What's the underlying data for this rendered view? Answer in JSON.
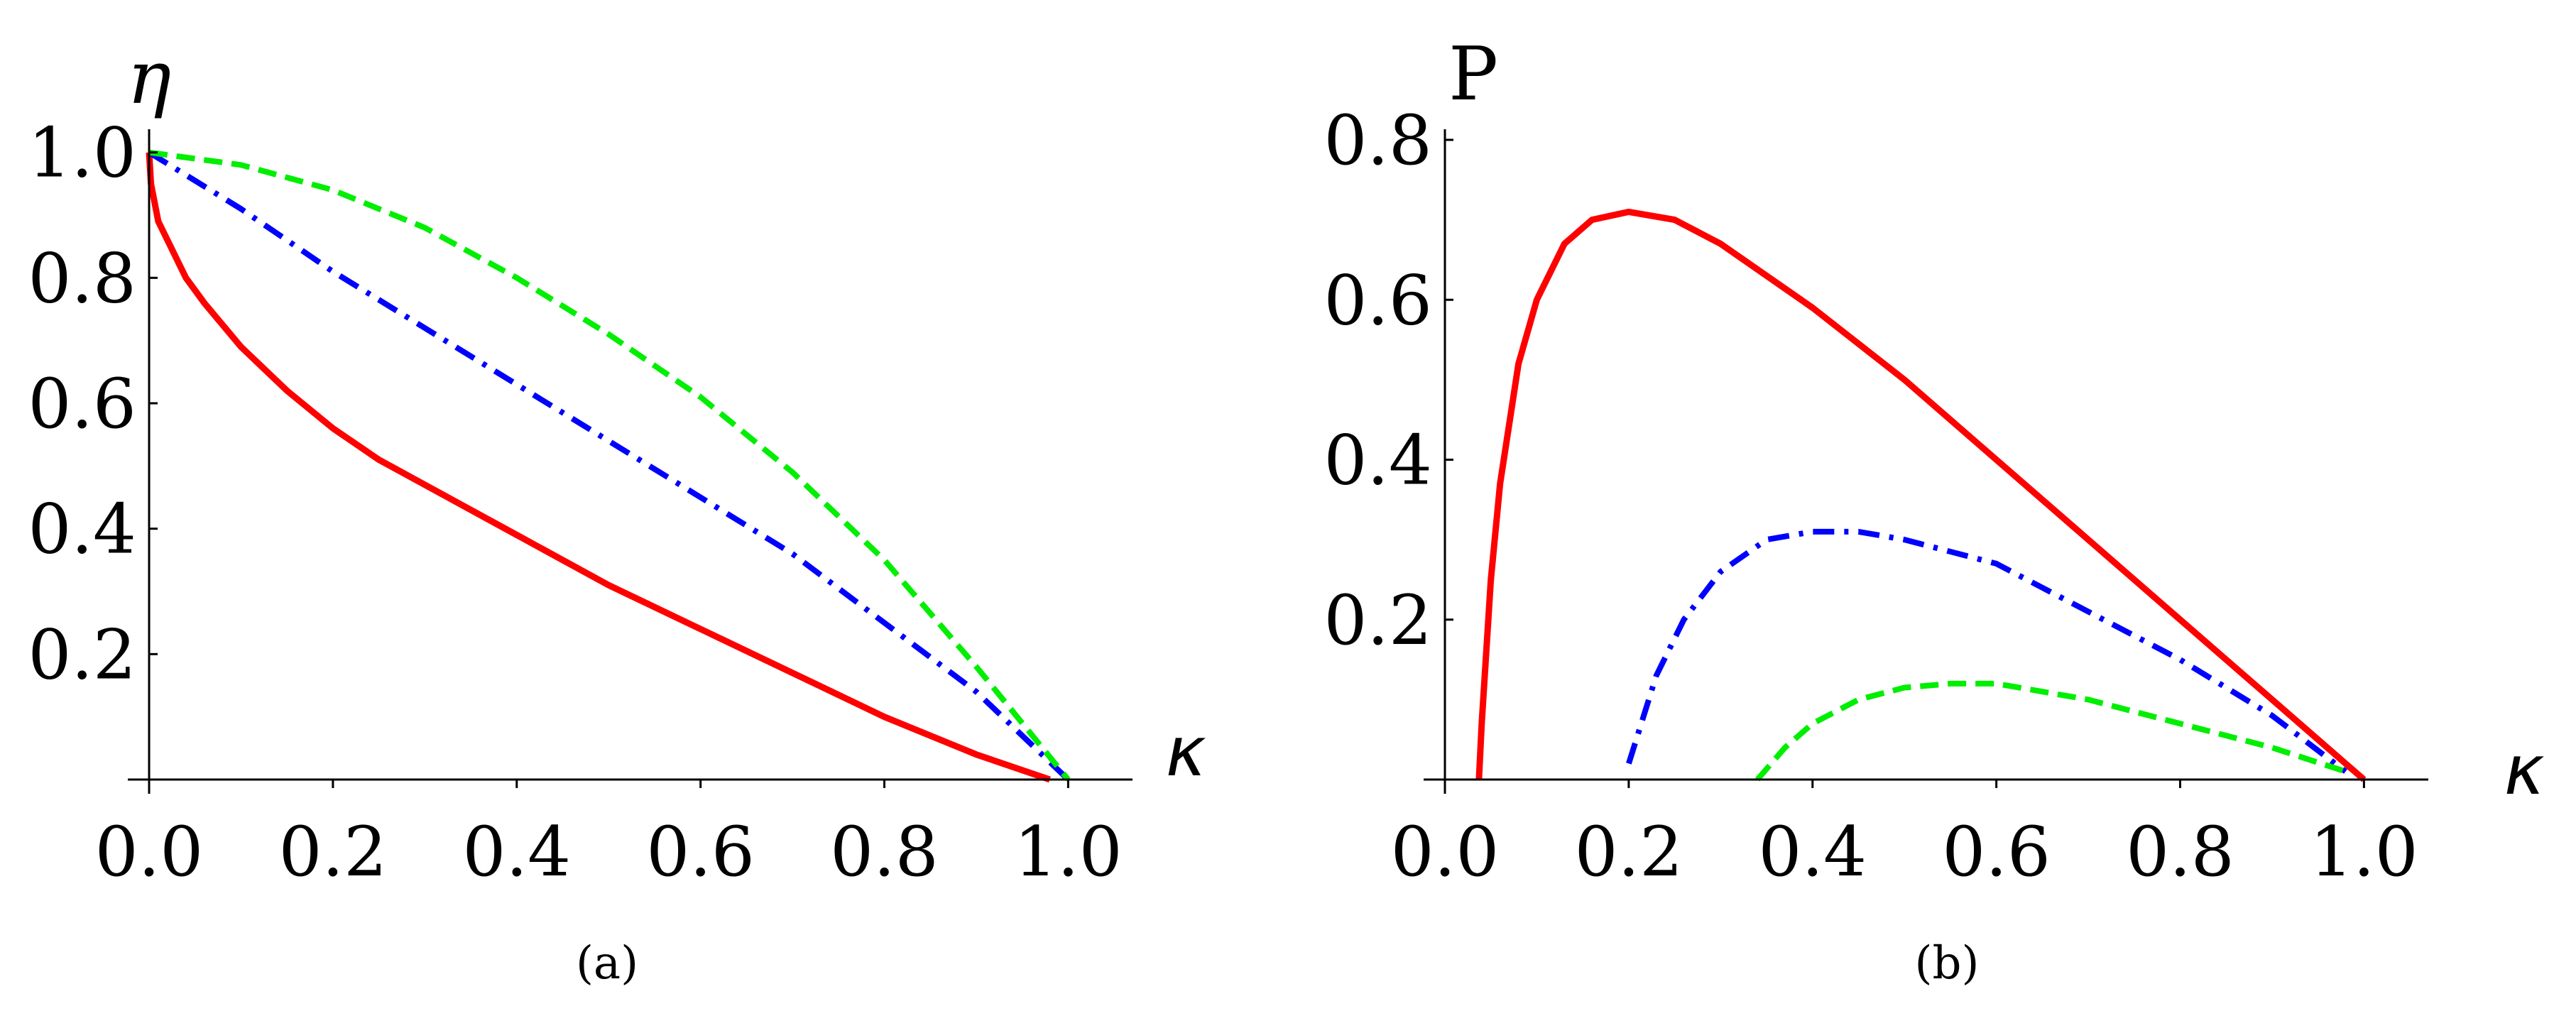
{
  "chart_data": [
    {
      "type": "line",
      "panel": "a",
      "caption": "(a)",
      "xlabel": "κ",
      "ylabel": "η",
      "xlim": [
        0,
        1.07
      ],
      "ylim": [
        0,
        1.02
      ],
      "xticks": [
        0.0,
        0.2,
        0.4,
        0.6,
        0.8,
        1.0
      ],
      "xtick_labels": [
        "0.0",
        "0.2",
        "0.4",
        "0.6",
        "0.8",
        "1.0"
      ],
      "yticks": [
        0.2,
        0.4,
        0.6,
        0.8,
        1.0
      ],
      "ytick_labels": [
        "0.2",
        "0.4",
        "0.6",
        "0.8",
        "1.0"
      ],
      "grid": false,
      "series": [
        {
          "style": "solid",
          "color": "#ff0000",
          "x": [
            0.0,
            0.002,
            0.01,
            0.02,
            0.04,
            0.06,
            0.1,
            0.15,
            0.2,
            0.25,
            0.3,
            0.4,
            0.5,
            0.6,
            0.7,
            0.8,
            0.9,
            0.98
          ],
          "y": [
            1.0,
            0.95,
            0.89,
            0.86,
            0.8,
            0.76,
            0.69,
            0.62,
            0.56,
            0.51,
            0.47,
            0.39,
            0.31,
            0.24,
            0.17,
            0.1,
            0.04,
            0.0
          ]
        },
        {
          "style": "dashdot",
          "color": "#0000ff",
          "x": [
            0.0,
            0.1,
            0.2,
            0.3,
            0.4,
            0.5,
            0.6,
            0.7,
            0.8,
            0.9,
            1.0
          ],
          "y": [
            1.0,
            0.91,
            0.81,
            0.72,
            0.63,
            0.54,
            0.45,
            0.36,
            0.25,
            0.14,
            0.0
          ]
        },
        {
          "style": "dashed",
          "color": "#00ee00",
          "x": [
            0.0,
            0.1,
            0.2,
            0.3,
            0.4,
            0.5,
            0.6,
            0.7,
            0.8,
            0.9,
            1.0
          ],
          "y": [
            1.0,
            0.98,
            0.94,
            0.88,
            0.8,
            0.71,
            0.61,
            0.49,
            0.35,
            0.18,
            0.0
          ]
        }
      ]
    },
    {
      "type": "line",
      "panel": "b",
      "caption": "(b)",
      "xlabel": "κ",
      "ylabel": "P",
      "xlim": [
        0,
        1.07
      ],
      "ylim": [
        0,
        0.8
      ],
      "xticks": [
        0.0,
        0.2,
        0.4,
        0.6,
        0.8,
        1.0
      ],
      "xtick_labels": [
        "0.0",
        "0.2",
        "0.4",
        "0.6",
        "0.8",
        "1.0"
      ],
      "yticks": [
        0.2,
        0.4,
        0.6,
        0.8
      ],
      "ytick_labels": [
        "0.2",
        "0.4",
        "0.6",
        "0.8"
      ],
      "grid": false,
      "series": [
        {
          "style": "solid",
          "color": "#ff0000",
          "x": [
            0.037,
            0.04,
            0.05,
            0.06,
            0.08,
            0.1,
            0.13,
            0.16,
            0.2,
            0.25,
            0.3,
            0.4,
            0.5,
            0.6,
            0.7,
            0.8,
            0.9,
            1.0
          ],
          "y": [
            0.0,
            0.07,
            0.25,
            0.37,
            0.52,
            0.6,
            0.67,
            0.7,
            0.71,
            0.7,
            0.67,
            0.59,
            0.5,
            0.4,
            0.3,
            0.2,
            0.1,
            0.0
          ]
        },
        {
          "style": "dashdot",
          "color": "#0000ff",
          "x": [
            0.2,
            0.23,
            0.26,
            0.3,
            0.35,
            0.4,
            0.45,
            0.5,
            0.6,
            0.7,
            0.8,
            0.9,
            0.98
          ],
          "y": [
            0.02,
            0.13,
            0.2,
            0.26,
            0.3,
            0.31,
            0.31,
            0.3,
            0.27,
            0.21,
            0.15,
            0.08,
            0.01
          ]
        },
        {
          "style": "dashed",
          "color": "#00ee00",
          "x": [
            0.34,
            0.37,
            0.4,
            0.45,
            0.5,
            0.55,
            0.6,
            0.7,
            0.8,
            0.9,
            0.98
          ],
          "y": [
            0.0,
            0.04,
            0.07,
            0.1,
            0.115,
            0.12,
            0.12,
            0.1,
            0.07,
            0.04,
            0.01
          ]
        }
      ]
    }
  ]
}
